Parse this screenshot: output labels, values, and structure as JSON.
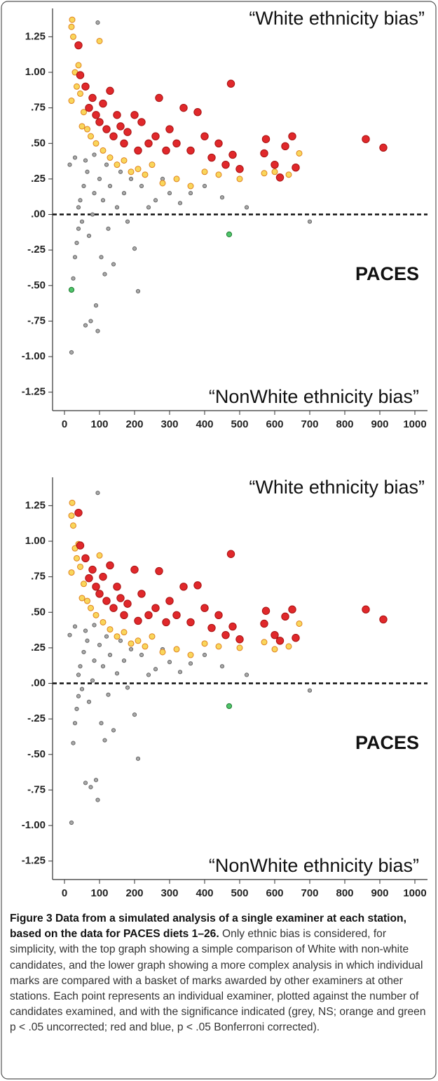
{
  "chart_data": [
    {
      "type": "scatter",
      "annotations": {
        "top": "“White ethnicity bias”",
        "middle": "PACES",
        "bottom": "“NonWhite ethnicity bias”"
      },
      "xlim": [
        -34,
        1036
      ],
      "xticks": [
        0,
        100,
        200,
        300,
        400,
        500,
        600,
        700,
        800,
        900,
        1000
      ],
      "ylim": [
        -1.38,
        1.41
      ],
      "yticks": [
        1.25,
        {
          "value": 1,
          "label": "1.00"
        },
        {
          "value": 0.75,
          "label": ".75"
        },
        {
          "value": 0.5,
          "label": ".50"
        },
        {
          "value": 0.25,
          "label": ".25"
        },
        {
          "value": 0,
          "label": ".00"
        },
        {
          "value": -0.25,
          "label": "-.25"
        },
        {
          "value": -0.5,
          "label": "-.50"
        },
        {
          "value": -0.75,
          "label": "-.75"
        },
        {
          "value": -1,
          "label": "-1.00"
        },
        -1.25
      ],
      "reference_line": 0,
      "series": [
        {
          "color": "#a9a9a9",
          "edgecolor": "#666666",
          "x": [
            20,
            25,
            30,
            35,
            40,
            45,
            50,
            55,
            60,
            65,
            70,
            75,
            80,
            85,
            90,
            95,
            100,
            105,
            110,
            115,
            120,
            125,
            130,
            140,
            150,
            160,
            170,
            180,
            190,
            200,
            210,
            220,
            240,
            260,
            280,
            300,
            330,
            360,
            400,
            450,
            520,
            700,
            95,
            30,
            60,
            85,
            40,
            15
          ],
          "values": [
            -0.97,
            -0.45,
            -0.3,
            -0.2,
            0.05,
            0.1,
            -0.05,
            0.2,
            -0.78,
            0.3,
            -0.15,
            -0.75,
            0,
            0.15,
            -0.64,
            -0.82,
            0.25,
            -0.3,
            0.1,
            -0.42,
            0.35,
            -0.1,
            0.2,
            -0.35,
            0.05,
            0.3,
            0.15,
            -0.05,
            0.25,
            -0.24,
            -0.54,
            0.2,
            0.05,
            0.1,
            0.25,
            0.15,
            0.08,
            0.15,
            0.2,
            0.12,
            0.05,
            -0.05,
            1.35,
            0.4,
            0.38,
            0.42,
            -0.1,
            0.35
          ]
        },
        {
          "color": "#f9d65b",
          "edgecolor": "#e0821e",
          "x": [
            22,
            20,
            25,
            30,
            35,
            40,
            45,
            55,
            65,
            75,
            90,
            100,
            110,
            130,
            150,
            170,
            190,
            210,
            230,
            250,
            280,
            320,
            360,
            400,
            440,
            500,
            570,
            600,
            640,
            670,
            20,
            50
          ],
          "values": [
            1.37,
            1.32,
            1.25,
            1.0,
            0.9,
            1.05,
            0.85,
            0.72,
            0.6,
            0.55,
            0.5,
            1.22,
            0.45,
            0.4,
            0.35,
            0.38,
            0.3,
            0.32,
            0.28,
            0.35,
            0.22,
            0.25,
            0.2,
            0.3,
            0.28,
            0.25,
            0.29,
            0.3,
            0.28,
            0.43,
            0.8,
            0.62
          ]
        },
        {
          "color": "#e0282b",
          "edgecolor": "#a81010",
          "x": [
            40,
            45,
            60,
            70,
            80,
            90,
            100,
            110,
            120,
            130,
            140,
            150,
            160,
            170,
            180,
            200,
            210,
            220,
            240,
            260,
            270,
            290,
            300,
            320,
            340,
            360,
            380,
            400,
            420,
            440,
            460,
            475,
            480,
            500,
            570,
            575,
            600,
            615,
            630,
            650,
            660,
            860,
            910
          ],
          "values": [
            1.19,
            0.98,
            0.9,
            0.75,
            0.82,
            0.7,
            0.65,
            0.78,
            0.6,
            0.87,
            0.55,
            0.7,
            0.62,
            0.5,
            0.58,
            0.7,
            0.45,
            0.65,
            0.5,
            0.55,
            0.82,
            0.45,
            0.6,
            0.5,
            0.75,
            0.45,
            0.72,
            0.55,
            0.4,
            0.5,
            0.35,
            0.92,
            0.42,
            0.32,
            0.43,
            0.53,
            0.35,
            0.26,
            0.48,
            0.55,
            0.33,
            0.53,
            0.47
          ]
        },
        {
          "color": "#4fc46a",
          "edgecolor": "#1e7a30",
          "x": [
            20,
            470
          ],
          "values": [
            -0.53,
            -0.14
          ]
        }
      ]
    },
    {
      "type": "scatter",
      "annotations": {
        "top": "“White ethnicity bias”",
        "middle": "PACES",
        "bottom": "“NonWhite ethnicity bias”"
      },
      "xlim": [
        -34,
        1036
      ],
      "xticks": [
        0,
        100,
        200,
        300,
        400,
        500,
        600,
        700,
        800,
        900,
        1000
      ],
      "ylim": [
        -1.38,
        1.41
      ],
      "yticks": [
        1.25,
        {
          "value": 1,
          "label": "1.00"
        },
        {
          "value": 0.75,
          "label": ".75"
        },
        {
          "value": 0.5,
          "label": ".50"
        },
        {
          "value": 0.25,
          "label": ".25"
        },
        {
          "value": 0,
          "label": ".00"
        },
        {
          "value": -0.25,
          "label": "-.25"
        },
        {
          "value": -0.5,
          "label": "-.50"
        },
        {
          "value": -0.75,
          "label": "-.75"
        },
        {
          "value": -1,
          "label": "-1.00"
        },
        -1.25
      ],
      "reference_line": 0,
      "series": [
        {
          "color": "#a9a9a9",
          "edgecolor": "#666666",
          "x": [
            20,
            25,
            30,
            35,
            40,
            45,
            50,
            55,
            60,
            65,
            70,
            75,
            80,
            85,
            90,
            95,
            100,
            105,
            110,
            115,
            120,
            125,
            130,
            140,
            150,
            160,
            170,
            180,
            190,
            200,
            210,
            220,
            240,
            260,
            280,
            300,
            330,
            360,
            400,
            450,
            520,
            700,
            95,
            30,
            60,
            85,
            40,
            15
          ],
          "values": [
            -0.98,
            -0.42,
            -0.28,
            -0.18,
            0.06,
            0.12,
            -0.04,
            0.22,
            -0.7,
            0.3,
            -0.13,
            -0.73,
            0.02,
            0.16,
            -0.68,
            -0.82,
            0.27,
            -0.28,
            0.12,
            -0.4,
            0.33,
            -0.08,
            0.2,
            -0.33,
            0.07,
            0.3,
            0.16,
            -0.03,
            0.24,
            -0.22,
            -0.53,
            0.2,
            0.06,
            0.1,
            0.24,
            0.15,
            0.08,
            0.14,
            0.2,
            0.12,
            0.06,
            -0.05,
            1.34,
            0.4,
            0.37,
            0.41,
            -0.09,
            0.34
          ]
        },
        {
          "color": "#f9d65b",
          "edgecolor": "#e0821e",
          "x": [
            22,
            20,
            25,
            30,
            35,
            40,
            45,
            55,
            65,
            75,
            90,
            100,
            110,
            130,
            150,
            170,
            190,
            210,
            230,
            250,
            280,
            320,
            360,
            400,
            440,
            500,
            570,
            600,
            640,
            670,
            20,
            50
          ],
          "values": [
            1.27,
            1.18,
            1.11,
            0.95,
            0.88,
            0.98,
            0.82,
            0.7,
            0.58,
            0.53,
            0.48,
            0.9,
            0.43,
            0.38,
            0.33,
            0.36,
            0.28,
            0.3,
            0.26,
            0.33,
            0.22,
            0.24,
            0.2,
            0.28,
            0.26,
            0.25,
            0.29,
            0.24,
            0.26,
            0.42,
            0.78,
            0.6
          ]
        },
        {
          "color": "#e0282b",
          "edgecolor": "#a81010",
          "x": [
            40,
            45,
            60,
            70,
            80,
            90,
            100,
            110,
            120,
            130,
            140,
            150,
            160,
            170,
            180,
            200,
            210,
            220,
            240,
            260,
            270,
            290,
            300,
            320,
            340,
            360,
            380,
            400,
            420,
            440,
            460,
            475,
            480,
            500,
            570,
            575,
            600,
            615,
            630,
            650,
            660,
            860,
            910
          ],
          "values": [
            1.2,
            0.97,
            0.88,
            0.74,
            0.8,
            0.68,
            0.63,
            0.75,
            0.58,
            0.83,
            0.53,
            0.68,
            0.6,
            0.48,
            0.56,
            0.8,
            0.44,
            0.63,
            0.48,
            0.53,
            0.79,
            0.43,
            0.58,
            0.48,
            0.68,
            0.43,
            0.69,
            0.53,
            0.39,
            0.48,
            0.34,
            0.91,
            0.4,
            0.31,
            0.42,
            0.51,
            0.34,
            0.3,
            0.47,
            0.52,
            0.32,
            0.52,
            0.45
          ]
        },
        {
          "color": "#4fc46a",
          "edgecolor": "#1e7a30",
          "x": [
            470
          ],
          "values": [
            -0.16
          ]
        }
      ]
    }
  ],
  "caption": {
    "title": "Figure 3 Data from a simulated analysis of a single examiner at each station, based on the data for PACES diets 1–26.",
    "text": "Only ethnic bias is considered, for simplicity, with the top graph showing a simple comparison of White with non-white candidates, and the lower graph showing a more complex analysis in which individual marks are compared with a basket of marks awarded by other examiners at other stations. Each point represents an individual examiner, plotted against the number of candidates examined, and with the significance indicated (grey, NS; orange and green p < .05 uncorrected; red and blue, p < .05 Bonferroni corrected)."
  }
}
